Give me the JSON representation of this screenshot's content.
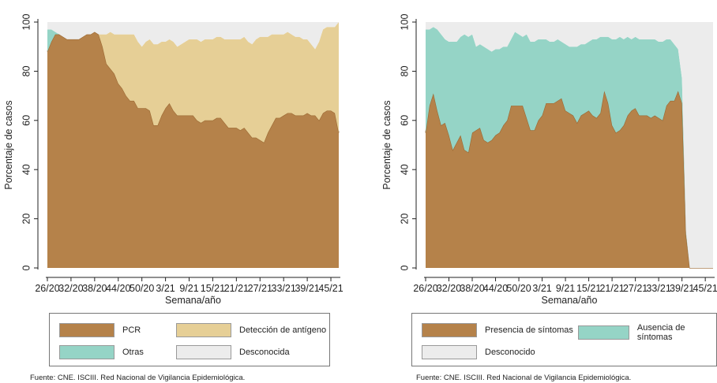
{
  "charts": [
    {
      "ylabel": "Porcentaje de casos",
      "xlabel": "Semana/año",
      "legend": [
        {
          "label": "PCR",
          "color": "#b5824a"
        },
        {
          "label": "Detección de antígeno",
          "color": "#e6cf96"
        },
        {
          "label": "Otras",
          "color": "#95d4c6"
        },
        {
          "label": "Desconocida",
          "color": "#ececec"
        }
      ],
      "source": "Fuente: CNE. ISCIII. Red Nacional de Vigilancia Epidemiológica."
    },
    {
      "ylabel": "Porcentaje de casos",
      "xlabel": "Semana/año",
      "legend": [
        {
          "label": "Presencia de síntomas",
          "color": "#b5824a"
        },
        {
          "label": "Ausencia de síntomas",
          "color": "#95d4c6"
        },
        {
          "label": "Desconocido",
          "color": "#ececec"
        }
      ],
      "source": "Fuente: CNE. ISCIII. Red Nacional de Vigilancia Epidemiológica."
    }
  ],
  "chart_data": [
    {
      "type": "area",
      "stacked": true,
      "x": [
        "26/20",
        "27/20",
        "28/20",
        "29/20",
        "30/20",
        "31/20",
        "32/20",
        "33/20",
        "34/20",
        "35/20",
        "36/20",
        "37/20",
        "38/20",
        "39/20",
        "40/20",
        "41/20",
        "42/20",
        "43/20",
        "44/20",
        "45/20",
        "46/20",
        "47/20",
        "48/20",
        "49/20",
        "50/20",
        "51/20",
        "52/20",
        "53/20",
        "1/21",
        "2/21",
        "3/21",
        "4/21",
        "5/21",
        "6/21",
        "7/21",
        "8/21",
        "9/21",
        "10/21",
        "11/21",
        "12/21",
        "13/21",
        "14/21",
        "15/21",
        "16/21",
        "17/21",
        "18/21",
        "19/21",
        "20/21",
        "21/21",
        "22/21",
        "23/21",
        "24/21",
        "25/21",
        "26/21",
        "27/21",
        "28/21",
        "29/21",
        "30/21",
        "31/21",
        "32/21",
        "33/21",
        "34/21",
        "35/21",
        "36/21",
        "37/21",
        "38/21",
        "39/21",
        "40/21",
        "41/21",
        "42/21",
        "43/21",
        "44/21",
        "45/21",
        "46/21",
        "47/21"
      ],
      "xticks": [
        "26/20",
        "32/20",
        "38/20",
        "44/20",
        "50/20",
        "3/21",
        "9/21",
        "15/21",
        "21/21",
        "27/21",
        "33/21",
        "39/21",
        "45/21"
      ],
      "series": [
        {
          "name": "PCR",
          "values": [
            88,
            92,
            95,
            95,
            94,
            93,
            93,
            93,
            93,
            94,
            95,
            95,
            96,
            95,
            90,
            83,
            81,
            79,
            75,
            73,
            70,
            68,
            68,
            65,
            65,
            65,
            64,
            58,
            58,
            62,
            65,
            67,
            64,
            62,
            62,
            62,
            62,
            62,
            60,
            59,
            60,
            60,
            60,
            61,
            61,
            59,
            57,
            57,
            57,
            56,
            57,
            55,
            53,
            53,
            52,
            51,
            55,
            58,
            61,
            61,
            62,
            63,
            63,
            62,
            62,
            62,
            63,
            62,
            62,
            60,
            63,
            64,
            64,
            63,
            55
          ]
        },
        {
          "name": "Detección de antígeno",
          "values": [
            0,
            0,
            0,
            0,
            0,
            0,
            0,
            0,
            0,
            0,
            0,
            0,
            0,
            0,
            5,
            12,
            15,
            16,
            20,
            22,
            25,
            27,
            27,
            27,
            25,
            27,
            29,
            33,
            33,
            30,
            27,
            26,
            28,
            28,
            29,
            30,
            31,
            31,
            33,
            33,
            33,
            33,
            33,
            33,
            33,
            34,
            36,
            36,
            36,
            37,
            37,
            37,
            38,
            40,
            42,
            43,
            39,
            37,
            34,
            34,
            33,
            33,
            32,
            32,
            32,
            31,
            30,
            29,
            27,
            32,
            34,
            34,
            34,
            35,
            45
          ]
        },
        {
          "name": "Otras",
          "values": [
            9,
            5,
            1,
            0,
            0,
            0,
            0,
            0,
            0,
            0,
            0,
            0,
            0,
            0,
            0,
            0,
            0,
            0,
            0,
            0,
            0,
            0,
            0,
            0,
            0,
            0,
            0,
            0,
            0,
            0,
            0,
            0,
            0,
            0,
            0,
            0,
            0,
            0,
            0,
            0,
            0,
            0,
            0,
            0,
            0,
            0,
            0,
            0,
            0,
            0,
            0,
            0,
            0,
            0,
            0,
            0,
            0,
            0,
            0,
            0,
            0,
            0,
            0,
            0,
            0,
            0,
            0,
            0,
            0,
            0,
            0,
            0,
            0,
            0,
            0
          ]
        },
        {
          "name": "Desconocida",
          "values": [
            3,
            3,
            4,
            5,
            6,
            7,
            7,
            7,
            7,
            6,
            5,
            5,
            4,
            5,
            5,
            5,
            4,
            5,
            5,
            5,
            5,
            5,
            5,
            8,
            10,
            8,
            7,
            9,
            9,
            8,
            8,
            7,
            8,
            10,
            9,
            8,
            7,
            7,
            7,
            8,
            7,
            7,
            7,
            6,
            6,
            7,
            7,
            7,
            7,
            7,
            6,
            8,
            9,
            7,
            6,
            6,
            6,
            5,
            5,
            5,
            5,
            4,
            5,
            6,
            6,
            7,
            7,
            9,
            11,
            8,
            3,
            2,
            2,
            2,
            0
          ]
        }
      ],
      "ylim": [
        0,
        100
      ],
      "yticks": [
        0,
        20,
        40,
        60,
        80,
        100
      ],
      "ylabel": "Porcentaje de casos",
      "xlabel": "Semana/año",
      "grid": false,
      "legend_position": "bottom"
    },
    {
      "type": "area",
      "stacked": true,
      "x": [
        "26/20",
        "27/20",
        "28/20",
        "29/20",
        "30/20",
        "31/20",
        "32/20",
        "33/20",
        "34/20",
        "35/20",
        "36/20",
        "37/20",
        "38/20",
        "39/20",
        "40/20",
        "41/20",
        "42/20",
        "43/20",
        "44/20",
        "45/20",
        "46/20",
        "47/20",
        "48/20",
        "49/20",
        "50/20",
        "51/20",
        "52/20",
        "53/20",
        "1/21",
        "2/21",
        "3/21",
        "4/21",
        "5/21",
        "6/21",
        "7/21",
        "8/21",
        "9/21",
        "10/21",
        "11/21",
        "12/21",
        "13/21",
        "14/21",
        "15/21",
        "16/21",
        "17/21",
        "18/21",
        "19/21",
        "20/21",
        "21/21",
        "22/21",
        "23/21",
        "24/21",
        "25/21",
        "26/21",
        "27/21",
        "28/21",
        "29/21",
        "30/21",
        "31/21",
        "32/21",
        "33/21",
        "34/21",
        "35/21",
        "36/21",
        "37/21",
        "38/21",
        "39/21",
        "40/21",
        "41/21",
        "42/21",
        "43/21",
        "44/21",
        "45/21",
        "46/21",
        "47/21"
      ],
      "xticks": [
        "26/20",
        "32/20",
        "38/20",
        "44/20",
        "50/20",
        "3/21",
        "9/21",
        "15/21",
        "21/21",
        "27/21",
        "33/21",
        "39/21",
        "45/21"
      ],
      "series": [
        {
          "name": "Presencia de síntomas",
          "values": [
            55,
            66,
            71,
            64,
            58,
            59,
            54,
            48,
            51,
            54,
            48,
            47,
            55,
            56,
            57,
            52,
            51,
            52,
            54,
            55,
            58,
            60,
            66,
            66,
            66,
            66,
            61,
            56,
            56,
            60,
            62,
            67,
            67,
            67,
            68,
            69,
            64,
            63,
            62,
            59,
            62,
            63,
            64,
            62,
            61,
            63,
            72,
            67,
            58,
            55,
            56,
            58,
            62,
            64,
            65,
            62,
            62,
            62,
            61,
            62,
            61,
            60,
            66,
            68,
            68,
            72,
            67,
            14,
            0,
            0,
            0,
            0,
            0,
            0,
            0
          ]
        },
        {
          "name": "Ausencia de síntomas",
          "values": [
            42,
            31,
            27,
            33,
            37,
            34,
            38,
            44,
            41,
            40,
            47,
            47,
            40,
            34,
            34,
            38,
            38,
            36,
            35,
            34,
            32,
            30,
            27,
            30,
            29,
            28,
            34,
            36,
            36,
            33,
            31,
            26,
            25,
            25,
            25,
            23,
            27,
            27,
            28,
            31,
            29,
            28,
            28,
            31,
            32,
            31,
            22,
            27,
            35,
            38,
            38,
            35,
            32,
            29,
            29,
            31,
            31,
            31,
            32,
            31,
            31,
            32,
            27,
            25,
            23,
            17,
            10,
            1,
            0,
            0,
            0,
            0,
            0,
            0,
            0
          ]
        },
        {
          "name": "Desconocido",
          "values": [
            3,
            3,
            2,
            3,
            5,
            7,
            8,
            8,
            8,
            6,
            5,
            6,
            5,
            10,
            9,
            10,
            11,
            12,
            11,
            11,
            10,
            10,
            7,
            4,
            5,
            6,
            5,
            8,
            8,
            7,
            7,
            7,
            8,
            8,
            7,
            8,
            9,
            10,
            10,
            10,
            9,
            9,
            8,
            7,
            7,
            6,
            6,
            6,
            7,
            7,
            6,
            7,
            6,
            7,
            6,
            7,
            7,
            7,
            7,
            7,
            8,
            8,
            7,
            7,
            9,
            11,
            23,
            85,
            100,
            100,
            100,
            100,
            100,
            100,
            100
          ]
        }
      ],
      "ylim": [
        0,
        100
      ],
      "yticks": [
        0,
        20,
        40,
        60,
        80,
        100
      ],
      "ylabel": "Porcentaje de casos",
      "xlabel": "Semana/año",
      "grid": false,
      "legend_position": "bottom"
    }
  ]
}
